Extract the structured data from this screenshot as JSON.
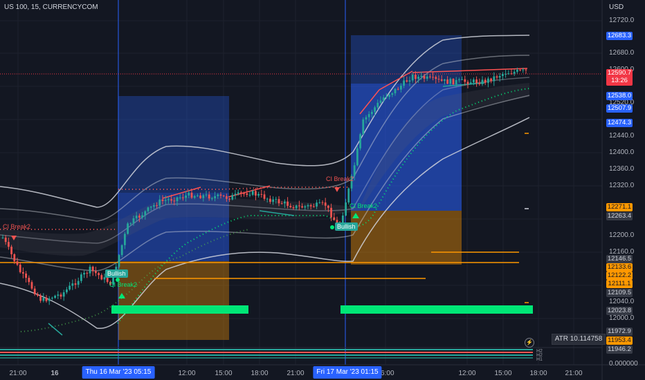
{
  "header": {
    "symbol_line": "US 100, 15, CURRENCYCOM"
  },
  "price_axis": {
    "unit": "USD",
    "ticks": [
      "12720.0",
      "12680.0",
      "12640.0",
      "12600.0",
      "12560.0",
      "12520.0",
      "12480.0",
      "12440.0",
      "12400.0",
      "12360.0",
      "12320.0",
      "12280.0",
      "12240.0",
      "12200.0",
      "12160.0",
      "12120.0",
      "12080.0",
      "12040.0",
      "12000.0",
      "11960.0",
      "0.000000"
    ],
    "tags": [
      {
        "value": "12683.3",
        "bg": "#2962ff",
        "fg": "#ffffff"
      },
      {
        "value": "12590.7",
        "sub": "13:26",
        "bg": "#f23645",
        "fg": "#ffffff"
      },
      {
        "value": "12538.0",
        "bg": "#2962ff",
        "fg": "#ffffff"
      },
      {
        "value": "12507.9",
        "bg": "#2962ff",
        "fg": "#ffffff"
      },
      {
        "value": "12474.3",
        "bg": "#2962ff",
        "fg": "#ffffff"
      },
      {
        "value": "12271.1",
        "bg": "#ff9800",
        "fg": "#131722"
      },
      {
        "value": "12263.4",
        "bg": "#363a45",
        "fg": "#d1d4dc"
      },
      {
        "value": "12146.5",
        "bg": "#363a45",
        "fg": "#d1d4dc"
      },
      {
        "value": "12133.6",
        "bg": "#ff9800",
        "fg": "#131722"
      },
      {
        "value": "12122.2",
        "bg": "#ff9800",
        "fg": "#131722"
      },
      {
        "value": "12111.1",
        "bg": "#ff9800",
        "fg": "#131722"
      },
      {
        "value": "12109.5",
        "bg": "#363a45",
        "fg": "#d1d4dc"
      },
      {
        "value": "12023.8",
        "bg": "#363a45",
        "fg": "#d1d4dc"
      },
      {
        "value": "11972.9",
        "bg": "#363a45",
        "fg": "#d1d4dc"
      },
      {
        "value": "11953.4",
        "bg": "#ff9800",
        "fg": "#131722"
      },
      {
        "value": "11946.2",
        "bg": "#363a45",
        "fg": "#d1d4dc"
      }
    ]
  },
  "time_axis": {
    "ticks": [
      "21:00",
      "16",
      "12:00",
      "15:00",
      "18:00",
      "21:00",
      "06:00",
      "12:00",
      "15:00",
      "18:00",
      "21:00"
    ],
    "flags": [
      "Thu 16 Mar '23  05:15",
      "Fri 17 Mar '23  01:15"
    ]
  },
  "indicator": {
    "atr_label": "ATR  10.114758"
  },
  "labels": {
    "ci_break": "CI Break2",
    "bullish": "Bullish",
    "mini": [
      "H2",
      "H2",
      "H1"
    ]
  },
  "colors": {
    "bull": "#26a69a",
    "bear": "#ef5350",
    "accent_blue": "#2962ff",
    "orange": "#ff9800",
    "green_zone": "#00e676"
  }
}
